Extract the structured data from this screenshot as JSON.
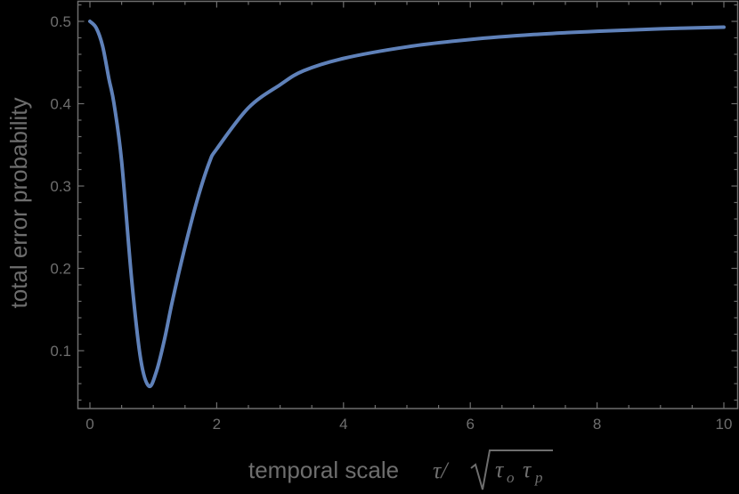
{
  "chart_data": {
    "type": "line",
    "title": "",
    "xlabel": "temporal scale τ/√(τo τp)",
    "ylabel": "total error probability",
    "xlim": [
      0,
      10
    ],
    "ylim": [
      0.04,
      0.525
    ],
    "x_ticks": [
      0,
      2,
      4,
      6,
      8,
      10
    ],
    "x_tick_labels": [
      "0",
      "2",
      "4",
      "6",
      "8",
      "10"
    ],
    "y_ticks": [
      0.1,
      0.2,
      0.3,
      0.4,
      0.5
    ],
    "y_tick_labels": [
      "0.1",
      "0.2",
      "0.3",
      "0.4",
      "0.5"
    ],
    "grid": false,
    "legend": null,
    "series": [
      {
        "name": "total error probability",
        "color": "#5f81b9",
        "x": [
          0,
          0.1,
          0.2,
          0.3,
          0.38,
          0.5,
          0.66,
          0.8,
          0.93,
          1.05,
          1.18,
          1.3,
          1.49,
          1.7,
          1.89,
          2.0,
          2.5,
          3.0,
          3.37,
          4.0,
          5.0,
          6.0,
          7.0,
          8.0,
          9.0,
          10.0
        ],
        "values": [
          0.5,
          0.492,
          0.47,
          0.43,
          0.4,
          0.33,
          0.185,
          0.09,
          0.057,
          0.075,
          0.115,
          0.16,
          0.223,
          0.285,
          0.33,
          0.345,
          0.395,
          0.423,
          0.44,
          0.455,
          0.469,
          0.478,
          0.484,
          0.488,
          0.491,
          0.493
        ]
      }
    ]
  },
  "axes": {
    "xlabel_text": "temporal scale",
    "xlabel_tau": "τ/",
    "xlabel_tau_o": "τ",
    "xlabel_sub_o": "o",
    "xlabel_tau_p": "τ",
    "xlabel_sub_p": "p",
    "ylabel": "total error probability"
  },
  "colors": {
    "background": "#000000",
    "frame": "#6e6e6e",
    "curve": "#5f81b9"
  }
}
